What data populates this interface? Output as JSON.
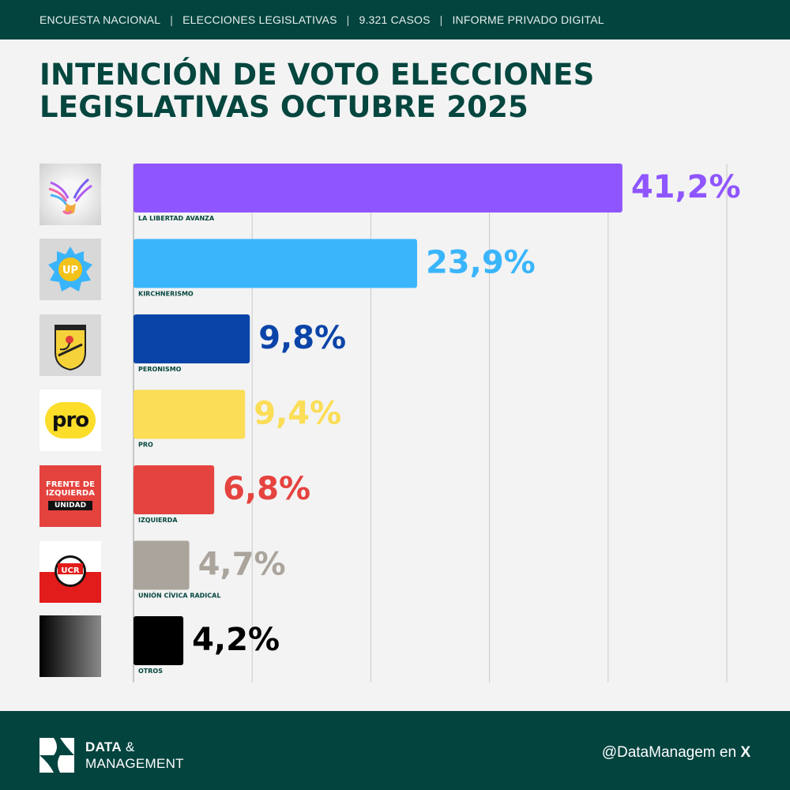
{
  "header": {
    "items": [
      "ENCUESTA NACIONAL",
      "ELECCIONES LEGISLATIVAS",
      "9.321 CASOS",
      "INFORME PRIVADO DIGITAL"
    ],
    "separator": "|"
  },
  "title": {
    "line1": "INTENCIÓN DE VOTO ELECCIONES",
    "line2": "LEGISLATIVAS OCTUBRE 2025"
  },
  "logos": {
    "lla": "LLA",
    "up": "UP",
    "pro": "pro",
    "fit_line1": "FRENTE DE",
    "fit_line2": "IZQUIERDA",
    "fit_line3": "UNIDAD",
    "ucr": "UCR"
  },
  "chart_data": {
    "type": "bar",
    "orientation": "horizontal",
    "xlim": [
      0,
      50
    ],
    "grid": true,
    "categories": [
      "LA LIBERTAD AVANZA",
      "KIRCHNERISMO",
      "PERONISMO",
      "PRO",
      "IZQUIERDA",
      "UNIÓN CÍVICA RADICAL",
      "OTROS"
    ],
    "values": [
      41.2,
      23.9,
      9.8,
      9.4,
      6.8,
      4.7,
      4.2
    ],
    "value_labels": [
      "41,2%",
      "23,9%",
      "9,8%",
      "9,4%",
      "6,8%",
      "4,7%",
      "4,2%"
    ],
    "colors": [
      "#8f55ff",
      "#3ab5fc",
      "#0b44a8",
      "#fbdd56",
      "#e5433f",
      "#aaa49c",
      "#000000"
    ]
  },
  "footer": {
    "brand_bold": "DATA",
    "brand_amp": "&",
    "brand_line2": "MANAGEMENT",
    "handle": "@DataManagem en",
    "handle_x": "X"
  },
  "theme": {
    "dark_green": "#03443f",
    "title_green": "#05463f"
  }
}
